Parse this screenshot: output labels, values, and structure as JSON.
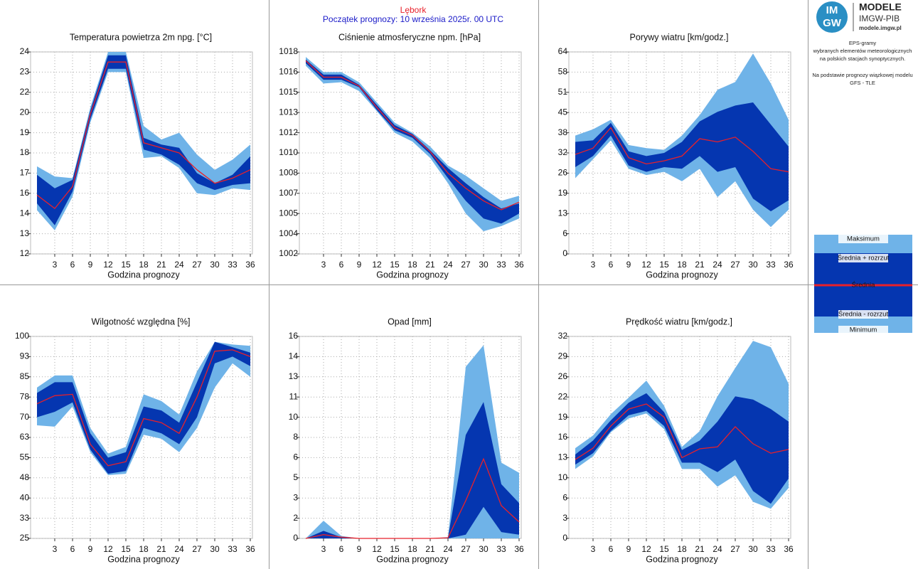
{
  "header": {
    "station": "Lębork",
    "start": "Początek prognozy: 10 września 2025r. 00 UTC"
  },
  "sidebar": {
    "badge_top": "IM",
    "badge_bottom": "GW",
    "brand": "MODELE",
    "org": "IMGW-PIB",
    "url": "modele.imgw.pl",
    "description": [
      "EPS-gramy",
      "wybranych elementów meteorologicznych",
      "na polskich stacjach  synoptycznych.",
      "Na podstawie prognozy wiązkowej modelu",
      "GFS - TLE"
    ]
  },
  "legend": [
    {
      "label": "Maksimum",
      "color": "#6fb3e8"
    },
    {
      "label": "Średnia + rozrzut",
      "color": "#0536b0"
    },
    {
      "label": "Średnia",
      "color": "#e8202a"
    },
    {
      "label": "Średnia - rozrzut",
      "color": "#0536b0"
    },
    {
      "label": "Minimum",
      "color": "#6fb3e8"
    }
  ],
  "chart_data": [
    {
      "type": "band",
      "title": "Temperatura powietrza 2m npg. [°C]",
      "x_label": "Godzina prognozy",
      "x": [
        0,
        3,
        6,
        9,
        12,
        15,
        18,
        21,
        24,
        27,
        30,
        33,
        36
      ],
      "xlim": [
        0,
        36
      ],
      "xticks": [
        3,
        6,
        9,
        12,
        15,
        18,
        21,
        24,
        27,
        30,
        33,
        36
      ],
      "ylim": [
        12,
        24
      ],
      "yticks": [
        12,
        {
          "value": 13.2,
          "label": "13"
        },
        {
          "value": 14.4,
          "label": "14"
        },
        {
          "value": 15.6,
          "label": "16"
        },
        {
          "value": 16.8,
          "label": "17"
        },
        18,
        {
          "value": 19.2,
          "label": "19"
        },
        {
          "value": 20.4,
          "label": "20"
        },
        {
          "value": 21.6,
          "label": "22"
        },
        {
          "value": 22.8,
          "label": "23"
        },
        24
      ],
      "series": [
        {
          "values": [
            17.2,
            16.6,
            16.5,
            20.7,
            24.0,
            24.0,
            19.6,
            18.8,
            19.2,
            17.9,
            17.0,
            17.6,
            18.5
          ]
        },
        {
          "values": [
            16.7,
            15.9,
            16.4,
            20.5,
            23.8,
            23.8,
            18.9,
            18.5,
            18.3,
            16.8,
            16.2,
            16.7,
            17.8
          ]
        },
        {
          "values": [
            15.5,
            14.7,
            16.0,
            20.3,
            23.4,
            23.4,
            18.6,
            18.3,
            18.0,
            17.0,
            16.2,
            16.5,
            17.0
          ]
        },
        {
          "values": [
            15.0,
            13.7,
            15.7,
            20.0,
            23.0,
            23.0,
            18.2,
            17.9,
            17.3,
            16.2,
            15.8,
            16.1,
            16.2
          ]
        },
        {
          "values": [
            14.6,
            13.4,
            15.4,
            19.8,
            22.8,
            22.8,
            17.7,
            17.8,
            17.1,
            15.6,
            15.5,
            15.9,
            15.8
          ]
        }
      ]
    },
    {
      "type": "band",
      "title": "Ciśnienie atmosferyczne npm. [hPa]",
      "x_label": "Godzina prognozy",
      "x": [
        0,
        3,
        6,
        9,
        12,
        15,
        18,
        21,
        24,
        27,
        30,
        33,
        36
      ],
      "xlim": [
        0,
        36
      ],
      "xticks": [
        3,
        6,
        9,
        12,
        15,
        18,
        21,
        24,
        27,
        30,
        33,
        36
      ],
      "ylim": [
        1002,
        1018
      ],
      "yticks": [
        1002,
        {
          "value": 1003.6,
          "label": "1004"
        },
        {
          "value": 1005.2,
          "label": "1005"
        },
        {
          "value": 1006.8,
          "label": "1007"
        },
        {
          "value": 1008.4,
          "label": "1008"
        },
        1010,
        {
          "value": 1011.6,
          "label": "1012"
        },
        {
          "value": 1013.2,
          "label": "1013"
        },
        {
          "value": 1014.8,
          "label": "1015"
        },
        {
          "value": 1016.4,
          "label": "1016"
        },
        1018
      ],
      "series": [
        {
          "values": [
            1017.6,
            1016.4,
            1016.4,
            1015.6,
            1014.0,
            1012.4,
            1011.6,
            1010.5,
            1009.0,
            1008.2,
            1007.2,
            1006.2,
            1006.6
          ]
        },
        {
          "values": [
            1017.4,
            1016.2,
            1016.2,
            1015.4,
            1013.8,
            1012.2,
            1011.5,
            1010.2,
            1008.8,
            1007.6,
            1006.5,
            1005.6,
            1006.0
          ]
        },
        {
          "values": [
            1017.3,
            1016.0,
            1016.0,
            1015.3,
            1013.6,
            1012.0,
            1011.4,
            1010.1,
            1008.4,
            1007.2,
            1006.2,
            1005.5,
            1006.1
          ]
        },
        {
          "values": [
            1017.1,
            1015.8,
            1015.8,
            1015.2,
            1013.4,
            1011.8,
            1011.2,
            1009.9,
            1008.0,
            1006.2,
            1004.8,
            1004.4,
            1005.2
          ]
        },
        {
          "values": [
            1016.9,
            1015.5,
            1015.6,
            1014.9,
            1013.3,
            1011.6,
            1010.9,
            1009.6,
            1007.6,
            1005.2,
            1003.8,
            1004.2,
            1004.8
          ]
        }
      ]
    },
    {
      "type": "band",
      "title": "Porywy wiatru [km/godz.]",
      "x_label": "Godzina prognozy",
      "x": [
        0,
        3,
        6,
        9,
        12,
        15,
        18,
        21,
        24,
        27,
        30,
        33,
        36
      ],
      "xlim": [
        0,
        36
      ],
      "xticks": [
        3,
        6,
        9,
        12,
        15,
        18,
        21,
        24,
        27,
        30,
        33,
        36
      ],
      "ylim": [
        0,
        64
      ],
      "yticks": [
        0,
        {
          "value": 6.4,
          "label": "6"
        },
        {
          "value": 12.8,
          "label": "13"
        },
        {
          "value": 19.2,
          "label": "19"
        },
        {
          "value": 25.6,
          "label": "26"
        },
        32,
        {
          "value": 38.4,
          "label": "38"
        },
        {
          "value": 44.8,
          "label": "45"
        },
        {
          "value": 51.2,
          "label": "51"
        },
        {
          "value": 57.6,
          "label": "58"
        },
        64
      ],
      "series": [
        {
          "values": [
            37.5,
            39.5,
            42.5,
            34.5,
            33.5,
            33.0,
            37.5,
            44,
            52,
            54.5,
            63.5,
            54,
            42.5
          ]
        },
        {
          "values": [
            35.5,
            36,
            41.5,
            32.5,
            31,
            32,
            35.5,
            42,
            45,
            47,
            48,
            41,
            34
          ]
        },
        {
          "values": [
            31.5,
            33.5,
            40,
            30.5,
            28.5,
            29.5,
            31,
            36.5,
            35.5,
            37,
            32.5,
            27,
            26
          ]
        },
        {
          "values": [
            27.5,
            31,
            37.5,
            28,
            26,
            27.5,
            27,
            31,
            26,
            27.5,
            17.5,
            13.5,
            17
          ]
        },
        {
          "values": [
            24,
            30,
            36,
            27,
            25,
            26,
            23,
            27,
            18,
            23,
            14,
            8.5,
            14
          ]
        }
      ]
    },
    {
      "type": "band",
      "title": "Wilgotność względna [%]",
      "x_label": "Godzina prognozy",
      "x": [
        0,
        3,
        6,
        9,
        12,
        15,
        18,
        21,
        24,
        27,
        30,
        33,
        36
      ],
      "xlim": [
        0,
        36
      ],
      "xticks": [
        3,
        6,
        9,
        12,
        15,
        18,
        21,
        24,
        27,
        30,
        33,
        36
      ],
      "ylim": [
        25,
        100
      ],
      "yticks": [
        25,
        {
          "value": 32.5,
          "label": "33"
        },
        40,
        {
          "value": 47.5,
          "label": "48"
        },
        55,
        {
          "value": 62.5,
          "label": "63"
        },
        70,
        {
          "value": 77.5,
          "label": "78"
        },
        85,
        {
          "value": 92.5,
          "label": "93"
        },
        100
      ],
      "series": [
        {
          "values": [
            81,
            85.5,
            85.5,
            66,
            56.5,
            59,
            78.5,
            76,
            71,
            87,
            98,
            97,
            96.5
          ]
        },
        {
          "values": [
            79,
            83,
            83,
            64,
            55,
            57,
            74,
            72.5,
            68,
            83,
            98,
            96,
            94
          ]
        },
        {
          "values": [
            75,
            78,
            78.5,
            60,
            52,
            53.5,
            69.5,
            68,
            64,
            77.5,
            94.5,
            95,
            92.5
          ]
        },
        {
          "values": [
            70,
            72,
            75.5,
            58,
            49,
            50,
            66,
            64,
            60,
            70,
            90,
            92.5,
            89
          ]
        },
        {
          "values": [
            67,
            66.5,
            74,
            57,
            48.5,
            49,
            63.5,
            62,
            57,
            66,
            81,
            90,
            85
          ]
        }
      ]
    },
    {
      "type": "band",
      "title": "Opad [mm]",
      "x_label": "Godzina prognozy",
      "x": [
        0,
        3,
        6,
        9,
        12,
        15,
        18,
        21,
        24,
        27,
        30,
        33,
        36
      ],
      "xlim": [
        0,
        36
      ],
      "xticks": [
        3,
        6,
        9,
        12,
        15,
        18,
        21,
        24,
        27,
        30,
        33,
        36
      ],
      "ylim": [
        0,
        16
      ],
      "yticks": [
        0,
        {
          "value": 1.6,
          "label": "2"
        },
        {
          "value": 3.2,
          "label": "3"
        },
        {
          "value": 4.8,
          "label": "5"
        },
        {
          "value": 6.4,
          "label": "6"
        },
        8,
        {
          "value": 9.6,
          "label": "10"
        },
        {
          "value": 11.2,
          "label": "11"
        },
        {
          "value": 12.8,
          "label": "13"
        },
        {
          "value": 14.4,
          "label": "14"
        },
        16
      ],
      "series": [
        {
          "values": [
            0,
            1.4,
            0.2,
            0,
            0,
            0,
            0,
            0,
            0.1,
            13.6,
            15.3,
            6.0,
            5.2
          ]
        },
        {
          "values": [
            0,
            0.6,
            0.1,
            0,
            0,
            0,
            0,
            0,
            0.05,
            8.2,
            10.8,
            4.3,
            2.8
          ]
        },
        {
          "values": [
            0,
            0.3,
            0.1,
            0,
            0,
            0,
            0,
            0,
            0.05,
            3.0,
            6.3,
            2.6,
            1.3
          ]
        },
        {
          "values": [
            0,
            0,
            0,
            0,
            0,
            0,
            0,
            0,
            0,
            0.3,
            2.5,
            0.5,
            0.3
          ]
        },
        {
          "values": [
            0,
            0,
            0,
            0,
            0,
            0,
            0,
            0,
            0,
            0,
            0,
            0,
            0
          ]
        }
      ]
    },
    {
      "type": "band",
      "title": "Prędkość wiatru [km/godz.]",
      "x_label": "Godzina prognozy",
      "x": [
        0,
        3,
        6,
        9,
        12,
        15,
        18,
        21,
        24,
        27,
        30,
        33,
        36
      ],
      "xlim": [
        0,
        36
      ],
      "xticks": [
        3,
        6,
        9,
        12,
        15,
        18,
        21,
        24,
        27,
        30,
        33,
        36
      ],
      "ylim": [
        0,
        32
      ],
      "yticks": [
        0,
        {
          "value": 3.2,
          "label": "3"
        },
        {
          "value": 6.4,
          "label": "6"
        },
        {
          "value": 9.6,
          "label": "10"
        },
        {
          "value": 12.8,
          "label": "13"
        },
        16,
        {
          "value": 19.2,
          "label": "19"
        },
        {
          "value": 22.4,
          "label": "22"
        },
        {
          "value": 25.6,
          "label": "26"
        },
        {
          "value": 28.8,
          "label": "29"
        },
        32
      ],
      "series": [
        {
          "values": [
            14.3,
            16.3,
            19.7,
            22.3,
            25.0,
            21.0,
            14.5,
            17.0,
            22.5,
            27,
            31.3,
            30.3,
            24.5
          ]
        },
        {
          "values": [
            13.3,
            15.5,
            18.7,
            21.5,
            23.0,
            20.0,
            14,
            15.5,
            18.5,
            22.5,
            22,
            20.5,
            18.5
          ]
        },
        {
          "values": [
            12.5,
            14.3,
            17.8,
            20.5,
            21.3,
            19.2,
            12.8,
            14.2,
            14.5,
            17.7,
            15,
            13.5,
            14.1
          ]
        },
        {
          "values": [
            11.7,
            13.5,
            17.0,
            19.5,
            20.2,
            17.8,
            12.0,
            12.0,
            10.5,
            12.5,
            7.5,
            5.5,
            9.5
          ]
        },
        {
          "values": [
            11,
            13,
            16.8,
            19,
            19.8,
            17.3,
            11,
            11,
            8.2,
            10,
            5.8,
            4.7,
            8
          ]
        }
      ]
    }
  ]
}
